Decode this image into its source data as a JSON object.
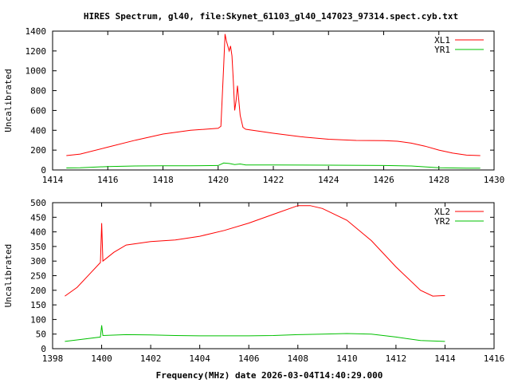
{
  "chart_data": [
    {
      "type": "line",
      "title": "HIRES Spectrum, gl40, file:Skynet_61103_gl40_147023_97314.spect.cyb.txt",
      "xlabel": "",
      "ylabel": "Uncalibrated",
      "xlim": [
        1414,
        1430
      ],
      "ylim": [
        0,
        1400
      ],
      "xticks": [
        1414,
        1416,
        1418,
        1420,
        1422,
        1424,
        1426,
        1428,
        1430
      ],
      "yticks": [
        0,
        200,
        400,
        600,
        800,
        1000,
        1200,
        1400
      ],
      "legend_position": "top-right",
      "series": [
        {
          "name": "XL1",
          "color": "#ff0000",
          "x": [
            1414.5,
            1415,
            1416,
            1417,
            1418,
            1419,
            1420,
            1420.1,
            1420.2,
            1420.25,
            1420.3,
            1420.4,
            1420.45,
            1420.5,
            1420.55,
            1420.6,
            1420.65,
            1420.7,
            1420.75,
            1420.8,
            1420.9,
            1421,
            1422,
            1423,
            1424,
            1425,
            1426,
            1426.5,
            1427,
            1427.5,
            1428,
            1428.5,
            1429,
            1429.5
          ],
          "y": [
            145,
            160,
            230,
            300,
            362,
            400,
            420,
            440,
            1050,
            1370,
            1300,
            1200,
            1250,
            1150,
            900,
            600,
            700,
            850,
            700,
            550,
            430,
            410,
            370,
            335,
            310,
            298,
            295,
            290,
            270,
            240,
            200,
            170,
            150,
            145
          ]
        },
        {
          "name": "YR1",
          "color": "#00c000",
          "x": [
            1414.5,
            1415,
            1416,
            1417,
            1418,
            1419,
            1420,
            1420.2,
            1420.4,
            1420.6,
            1420.8,
            1421,
            1422,
            1424,
            1426,
            1427,
            1428,
            1429,
            1429.5
          ],
          "y": [
            20,
            22,
            35,
            40,
            42,
            43,
            45,
            70,
            65,
            55,
            60,
            50,
            50,
            48,
            45,
            40,
            22,
            18,
            18
          ]
        }
      ]
    },
    {
      "type": "line",
      "title": "",
      "xlabel": "Frequency(MHz) date 2026-03-04T14:40:29.000",
      "ylabel": "Uncalibrated",
      "xlim": [
        1398,
        1416
      ],
      "ylim": [
        0,
        500
      ],
      "xticks": [
        1398,
        1400,
        1402,
        1404,
        1406,
        1408,
        1410,
        1412,
        1414,
        1416
      ],
      "yticks": [
        0,
        50,
        100,
        150,
        200,
        250,
        300,
        350,
        400,
        450,
        500
      ],
      "legend_position": "top-right",
      "series": [
        {
          "name": "XL2",
          "color": "#ff0000",
          "x": [
            1398.5,
            1399,
            1399.5,
            1399.95,
            1400,
            1400.05,
            1400.5,
            1401,
            1402,
            1403,
            1404,
            1405,
            1406,
            1407,
            1408,
            1408.5,
            1409,
            1410,
            1411,
            1412,
            1413,
            1413.5,
            1414
          ],
          "y": [
            180,
            210,
            255,
            295,
            430,
            300,
            330,
            355,
            367,
            372,
            385,
            405,
            430,
            460,
            490,
            490,
            480,
            440,
            370,
            280,
            200,
            180,
            182
          ]
        },
        {
          "name": "YR2",
          "color": "#00c000",
          "x": [
            1398.5,
            1399,
            1399.95,
            1400,
            1400.05,
            1401,
            1402,
            1403,
            1404,
            1405,
            1406,
            1407,
            1408,
            1409,
            1410,
            1411,
            1412,
            1413,
            1414
          ],
          "y": [
            25,
            30,
            40,
            80,
            45,
            48,
            47,
            45,
            44,
            44,
            44,
            45,
            48,
            50,
            52,
            50,
            40,
            28,
            25
          ]
        }
      ]
    }
  ]
}
